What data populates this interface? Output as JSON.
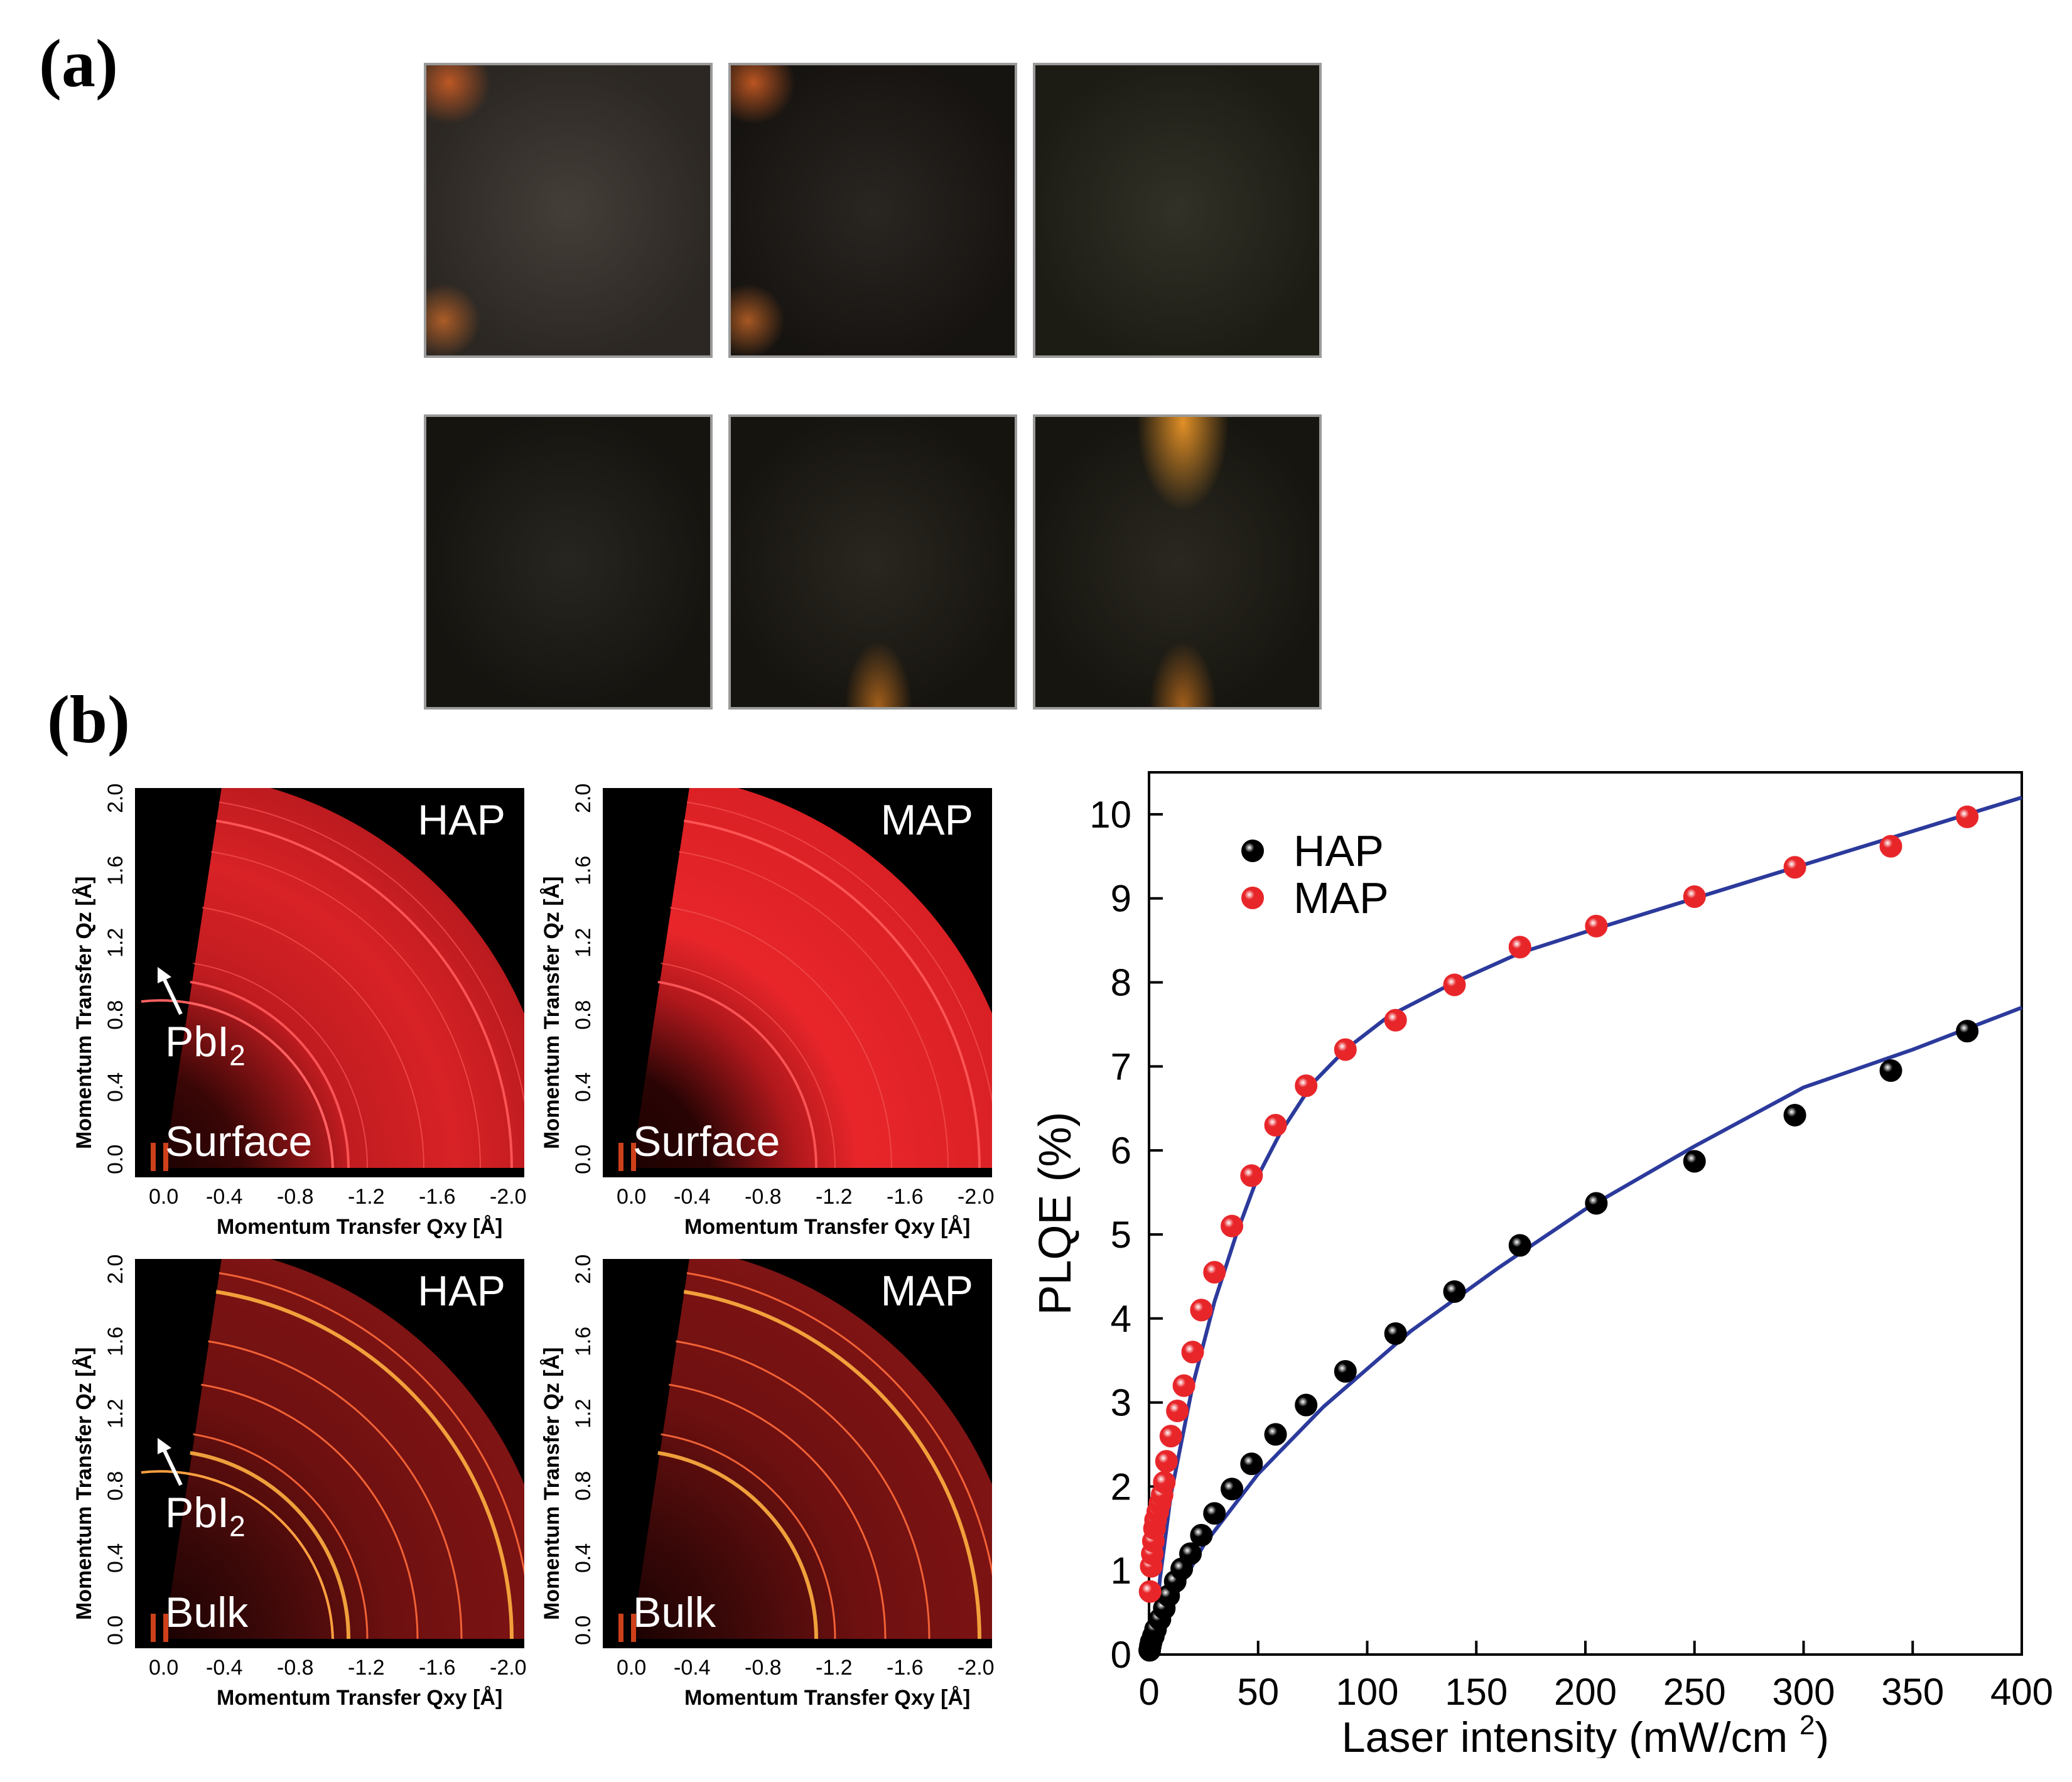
{
  "panel_a": {
    "label": "(a)",
    "photos": [
      {
        "row": 1,
        "col": 1,
        "base": "#3a342e",
        "spots": [
          "top-left",
          "bottom-left"
        ]
      },
      {
        "row": 1,
        "col": 2,
        "base": "#1e1a16",
        "spots": [
          "top-left",
          "bottom-left"
        ]
      },
      {
        "row": 1,
        "col": 3,
        "base": "#26261c",
        "spots": []
      },
      {
        "row": 2,
        "col": 1,
        "base": "#1c1a14",
        "spots": []
      },
      {
        "row": 2,
        "col": 2,
        "base": "#1e1b14",
        "spots": [
          "bottom"
        ]
      },
      {
        "row": 2,
        "col": 3,
        "base": "#1e1c14",
        "spots": [
          "top",
          "bottom"
        ]
      }
    ]
  },
  "panel_b": {
    "label": "(b)",
    "giwaxs": [
      {
        "id": "hap-surface",
        "sample": "HAP",
        "depth": "Surface",
        "pbi2": "PbI",
        "pbi2_sub": "2"
      },
      {
        "id": "map-surface",
        "sample": "MAP",
        "depth": "Surface"
      },
      {
        "id": "hap-bulk",
        "sample": "HAP",
        "depth": "Bulk",
        "pbi2": "PbI",
        "pbi2_sub": "2"
      },
      {
        "id": "map-bulk",
        "sample": "MAP",
        "depth": "Bulk"
      }
    ],
    "x_ticks": [
      "0.0",
      "-0.4",
      "-0.8",
      "-1.2",
      "-1.6",
      "-2.0"
    ],
    "y_ticks": [
      "0.0",
      "0.4",
      "0.8",
      "1.2",
      "1.6",
      "2.0"
    ],
    "x_axis_title": "Momentum Transfer Qxy [Å]",
    "y_axis_title": "Momentum Transfer Qz [Å]",
    "colors": {
      "bright": "#e8262a",
      "ring": "#ff7a3a",
      "dark": "#000000"
    }
  },
  "chart_data": {
    "type": "scatter",
    "title": "",
    "xlabel": "Laser intensity (mW/cm ",
    "xlabel_sup": "2",
    "xlabel_end": ")",
    "ylabel": "PLQE (%)",
    "xlim": [
      0,
      400
    ],
    "ylim": [
      0,
      10.5
    ],
    "x_ticks": [
      0,
      50,
      100,
      150,
      200,
      250,
      300,
      350,
      400
    ],
    "y_ticks": [
      0,
      1,
      2,
      3,
      4,
      5,
      6,
      7,
      8,
      9,
      10
    ],
    "legend_position": "top-left",
    "series": [
      {
        "name": "HAP",
        "color": "#000000",
        "x": [
          0.3,
          0.6,
          1,
          2,
          3,
          5,
          7,
          9,
          12,
          15,
          19,
          24,
          30,
          38,
          47,
          58,
          72,
          90,
          113,
          140,
          170,
          205,
          250,
          296,
          340,
          375
        ],
        "y": [
          0.05,
          0.1,
          0.15,
          0.22,
          0.3,
          0.42,
          0.55,
          0.7,
          0.87,
          1.02,
          1.2,
          1.42,
          1.68,
          1.97,
          2.27,
          2.62,
          2.97,
          3.37,
          3.82,
          4.32,
          4.87,
          5.37,
          5.87,
          6.42,
          6.95,
          7.42
        ]
      },
      {
        "name": "MAP",
        "color": "#e8262a",
        "x": [
          0.5,
          1,
          1.5,
          2,
          2.5,
          3,
          4,
          5,
          6,
          7,
          8,
          10,
          13,
          16,
          20,
          24,
          30,
          38,
          47,
          58,
          72,
          90,
          113,
          140,
          170,
          205,
          250,
          296,
          340,
          375
        ],
        "y": [
          0.75,
          1.05,
          1.2,
          1.35,
          1.5,
          1.6,
          1.7,
          1.8,
          1.9,
          2.05,
          2.3,
          2.6,
          2.9,
          3.2,
          3.6,
          4.1,
          4.55,
          5.1,
          5.7,
          6.3,
          6.77,
          7.2,
          7.55,
          7.97,
          8.42,
          8.67,
          9.02,
          9.37,
          9.62,
          9.97
        ]
      }
    ],
    "fits": [
      {
        "name": "HAP fit",
        "color": "#2c3a9c",
        "x": [
          2,
          10,
          25,
          50,
          80,
          120,
          160,
          200,
          250,
          300,
          350,
          400
        ],
        "y": [
          0.0,
          0.6,
          1.3,
          2.15,
          2.95,
          3.85,
          4.6,
          5.3,
          6.05,
          6.75,
          7.2,
          7.7
        ]
      },
      {
        "name": "MAP fit",
        "color": "#2c3a9c",
        "x": [
          2,
          5,
          10,
          20,
          30,
          40,
          50,
          60,
          75,
          90,
          110,
          140,
          170,
          200,
          250,
          300,
          350,
          400
        ],
        "y": [
          0.0,
          0.9,
          1.9,
          3.2,
          4.2,
          5.0,
          5.7,
          6.2,
          6.8,
          7.2,
          7.6,
          8.0,
          8.35,
          8.6,
          9.0,
          9.4,
          9.8,
          10.2
        ]
      }
    ]
  }
}
